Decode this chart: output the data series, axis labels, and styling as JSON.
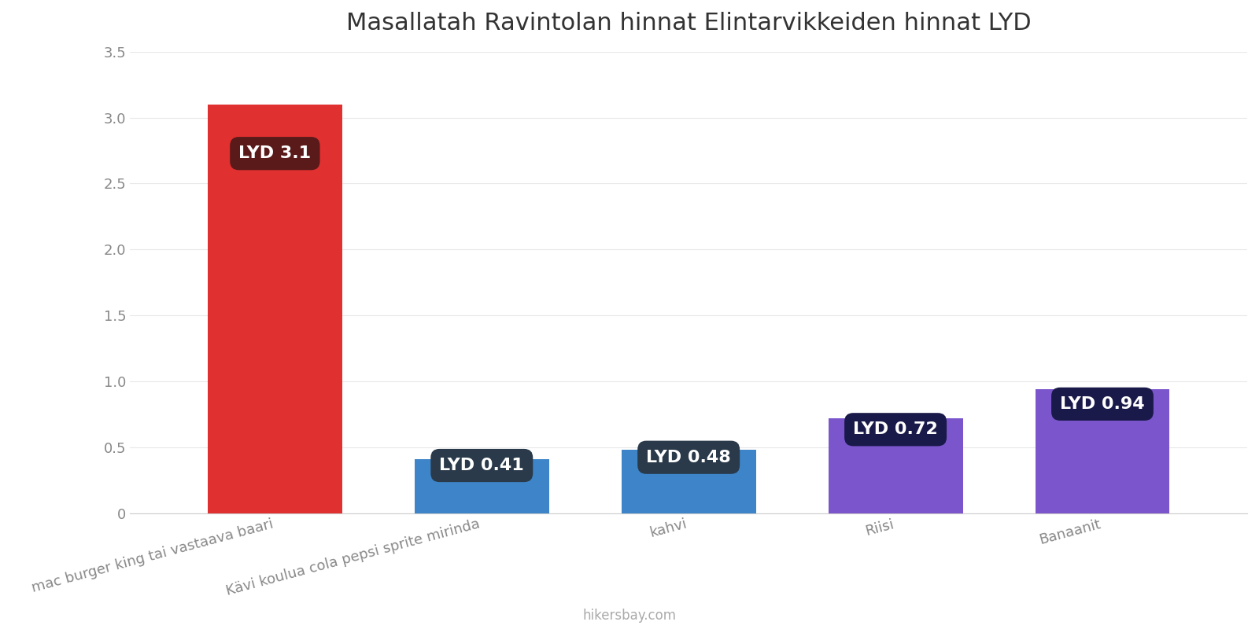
{
  "title": "Masallatah Ravintolan hinnat Elintarvikkeiden hinnat LYD",
  "categories": [
    "mac burger king tai vastaava baari",
    "Kävi koulua cola pepsi sprite mirinda",
    "kahvi",
    "Riisi",
    "Banaanit"
  ],
  "values": [
    3.1,
    0.41,
    0.48,
    0.72,
    0.94
  ],
  "bar_colors": [
    "#e03030",
    "#3d85c8",
    "#3d85c8",
    "#7b55cc",
    "#7b55cc"
  ],
  "label_bg_colors": [
    "#5a1a1a",
    "#2a3a4a",
    "#2a3a4a",
    "#1a1a4a",
    "#1a1a4a"
  ],
  "labels": [
    "LYD 3.1",
    "LYD 0.41",
    "LYD 0.48",
    "LYD 0.72",
    "LYD 0.94"
  ],
  "ylim": [
    0,
    3.5
  ],
  "yticks": [
    0,
    0.5,
    1.0,
    1.5,
    2.0,
    2.5,
    3.0,
    3.5
  ],
  "background_color": "#ffffff",
  "title_fontsize": 22,
  "tick_fontsize": 13,
  "label_fontsize": 16,
  "footer_text": "hikersbay.com",
  "footer_color": "#aaaaaa"
}
